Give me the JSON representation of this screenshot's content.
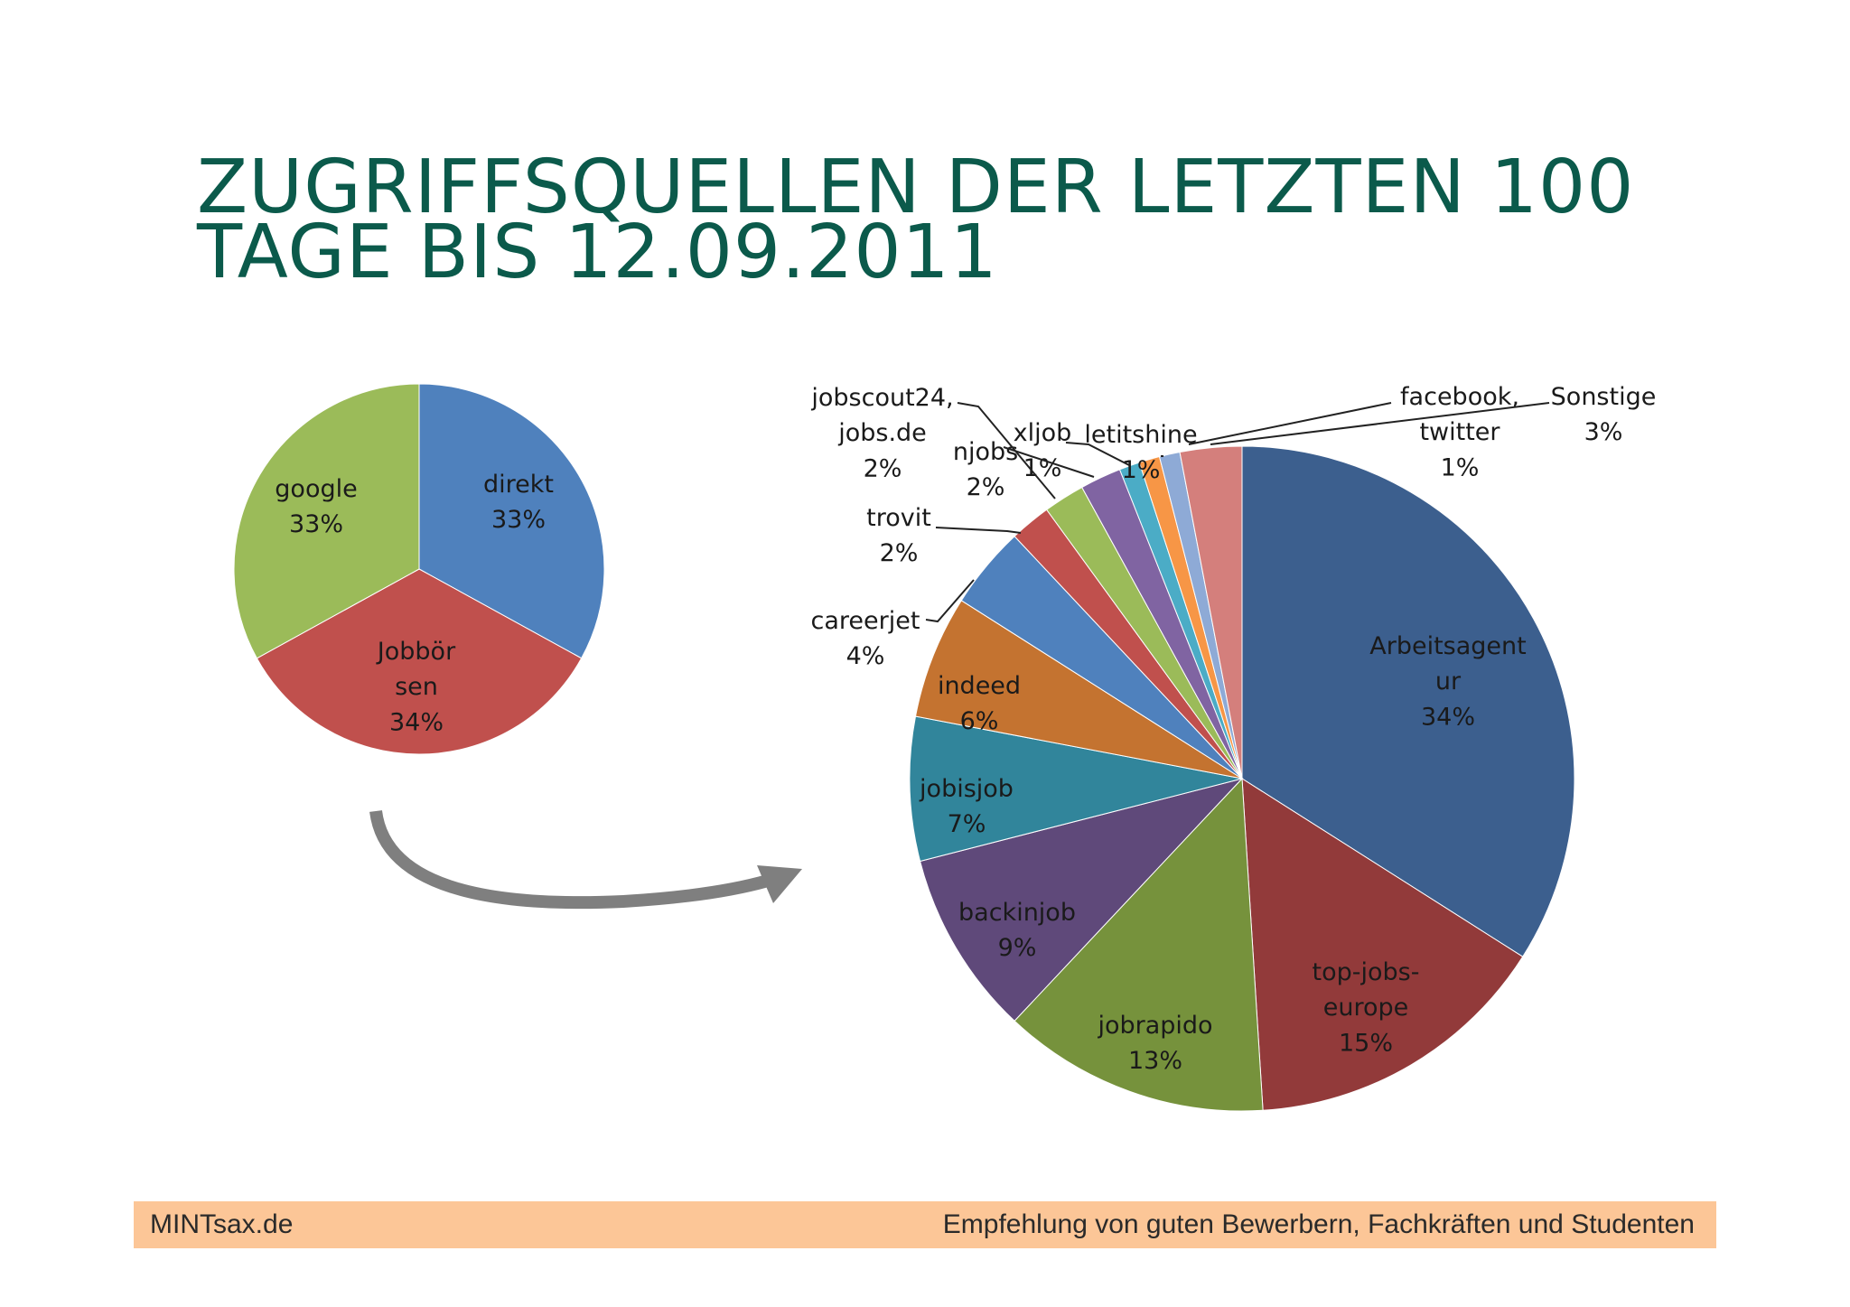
{
  "title": {
    "line1": "ZUGRIFFSQUELLEN DER LETZTEN 100",
    "line2": "TAGE BIS 12.09.2011"
  },
  "footer": {
    "left": "MINTsax.de",
    "right": "Empfehlung von guten Bewerbern, Fachkräften und Studenten"
  },
  "chart_data": [
    {
      "type": "pie",
      "slices": [
        {
          "label": [
            "direkt"
          ],
          "value": 33,
          "pct": "33%",
          "color": "#4f81bd"
        },
        {
          "label": [
            "Jobbör",
            "sen"
          ],
          "value": 34,
          "pct": "34%",
          "color": "#c0504d"
        },
        {
          "label": [
            "google"
          ],
          "value": 33,
          "pct": "33%",
          "color": "#9bbb59"
        }
      ]
    },
    {
      "type": "pie",
      "slices": [
        {
          "label": [
            "Arbeitsagent",
            "ur"
          ],
          "value": 34,
          "pct": "34%",
          "color": "#3c5f8e"
        },
        {
          "label": [
            "top-jobs-",
            "europe"
          ],
          "value": 15,
          "pct": "15%",
          "color": "#923a3a"
        },
        {
          "label": [
            "jobrapido"
          ],
          "value": 13,
          "pct": "13%",
          "color": "#76923c"
        },
        {
          "label": [
            "backinjob"
          ],
          "value": 9,
          "pct": "9%",
          "color": "#5f497a"
        },
        {
          "label": [
            "jobisjob"
          ],
          "value": 7,
          "pct": "7%",
          "color": "#31859b"
        },
        {
          "label": [
            "indeed"
          ],
          "value": 6,
          "pct": "6%",
          "color": "#c47330"
        },
        {
          "label": [
            "careerjet"
          ],
          "value": 4,
          "pct": "4%",
          "color": "#4f81bd"
        },
        {
          "label": [
            "trovit"
          ],
          "value": 2,
          "pct": "2%",
          "color": "#c0504d"
        },
        {
          "label": [
            "jobscout24,",
            "jobs.de"
          ],
          "value": 2,
          "pct": "2%",
          "color": "#9bbb59"
        },
        {
          "label": [
            "njobs"
          ],
          "value": 2,
          "pct": "2%",
          "color": "#8064a2"
        },
        {
          "label": [
            "xljob"
          ],
          "value": 1,
          "pct": "1%",
          "color": "#4bacc6"
        },
        {
          "label": [
            "letitshine"
          ],
          "value": 1,
          "pct": "1%",
          "color": "#f79646"
        },
        {
          "label": [
            "facebook,",
            "twitter"
          ],
          "value": 1,
          "pct": "1%",
          "color": "#8eaad6"
        },
        {
          "label": [
            "Sonstige"
          ],
          "value": 3,
          "pct": "3%",
          "color": "#d47f7c"
        }
      ]
    }
  ]
}
